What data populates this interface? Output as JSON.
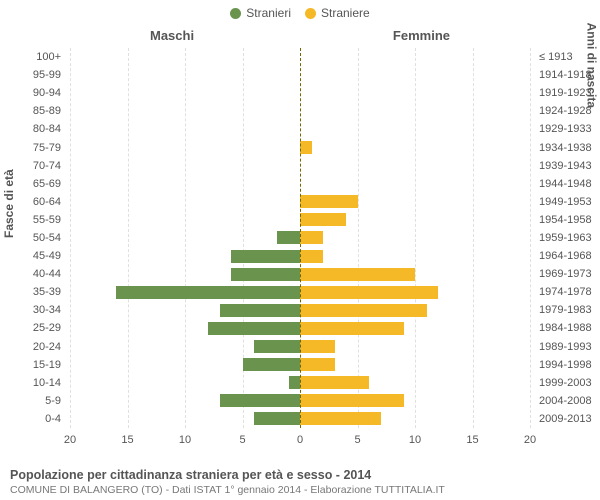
{
  "legend": {
    "male": {
      "label": "Stranieri",
      "color": "#6a944e"
    },
    "female": {
      "label": "Straniere",
      "color": "#f5b928"
    }
  },
  "side_titles": {
    "male": "Maschi",
    "female": "Femmine"
  },
  "y_axis_titles": {
    "left": "Fasce di età",
    "right": "Anni di nascita"
  },
  "x_axis": {
    "max": 20,
    "ticks": [
      20,
      15,
      10,
      5,
      0,
      5,
      10,
      15,
      20
    ]
  },
  "grid_color": "#e0e0e0",
  "center_line_color": "#776600",
  "caption": {
    "title": "Popolazione per cittadinanza straniera per età e sesso - 2014",
    "subtitle": "COMUNE DI BALANGERO (TO) - Dati ISTAT 1° gennaio 2014 - Elaborazione TUTTITALIA.IT"
  },
  "rows": [
    {
      "age": "100+",
      "birth": "≤ 1913",
      "m": 0,
      "f": 0
    },
    {
      "age": "95-99",
      "birth": "1914-1918",
      "m": 0,
      "f": 0
    },
    {
      "age": "90-94",
      "birth": "1919-1923",
      "m": 0,
      "f": 0
    },
    {
      "age": "85-89",
      "birth": "1924-1928",
      "m": 0,
      "f": 0
    },
    {
      "age": "80-84",
      "birth": "1929-1933",
      "m": 0,
      "f": 0
    },
    {
      "age": "75-79",
      "birth": "1934-1938",
      "m": 0,
      "f": 1
    },
    {
      "age": "70-74",
      "birth": "1939-1943",
      "m": 0,
      "f": 0
    },
    {
      "age": "65-69",
      "birth": "1944-1948",
      "m": 0,
      "f": 0
    },
    {
      "age": "60-64",
      "birth": "1949-1953",
      "m": 0,
      "f": 5
    },
    {
      "age": "55-59",
      "birth": "1954-1958",
      "m": 0,
      "f": 4
    },
    {
      "age": "50-54",
      "birth": "1959-1963",
      "m": 2,
      "f": 2
    },
    {
      "age": "45-49",
      "birth": "1964-1968",
      "m": 6,
      "f": 2
    },
    {
      "age": "40-44",
      "birth": "1969-1973",
      "m": 6,
      "f": 10
    },
    {
      "age": "35-39",
      "birth": "1974-1978",
      "m": 16,
      "f": 12
    },
    {
      "age": "30-34",
      "birth": "1979-1983",
      "m": 7,
      "f": 11
    },
    {
      "age": "25-29",
      "birth": "1984-1988",
      "m": 8,
      "f": 9
    },
    {
      "age": "20-24",
      "birth": "1989-1993",
      "m": 4,
      "f": 3
    },
    {
      "age": "15-19",
      "birth": "1994-1998",
      "m": 5,
      "f": 3
    },
    {
      "age": "10-14",
      "birth": "1999-2003",
      "m": 1,
      "f": 6
    },
    {
      "age": "5-9",
      "birth": "2004-2008",
      "m": 7,
      "f": 9
    },
    {
      "age": "0-4",
      "birth": "2009-2013",
      "m": 4,
      "f": 7
    }
  ]
}
